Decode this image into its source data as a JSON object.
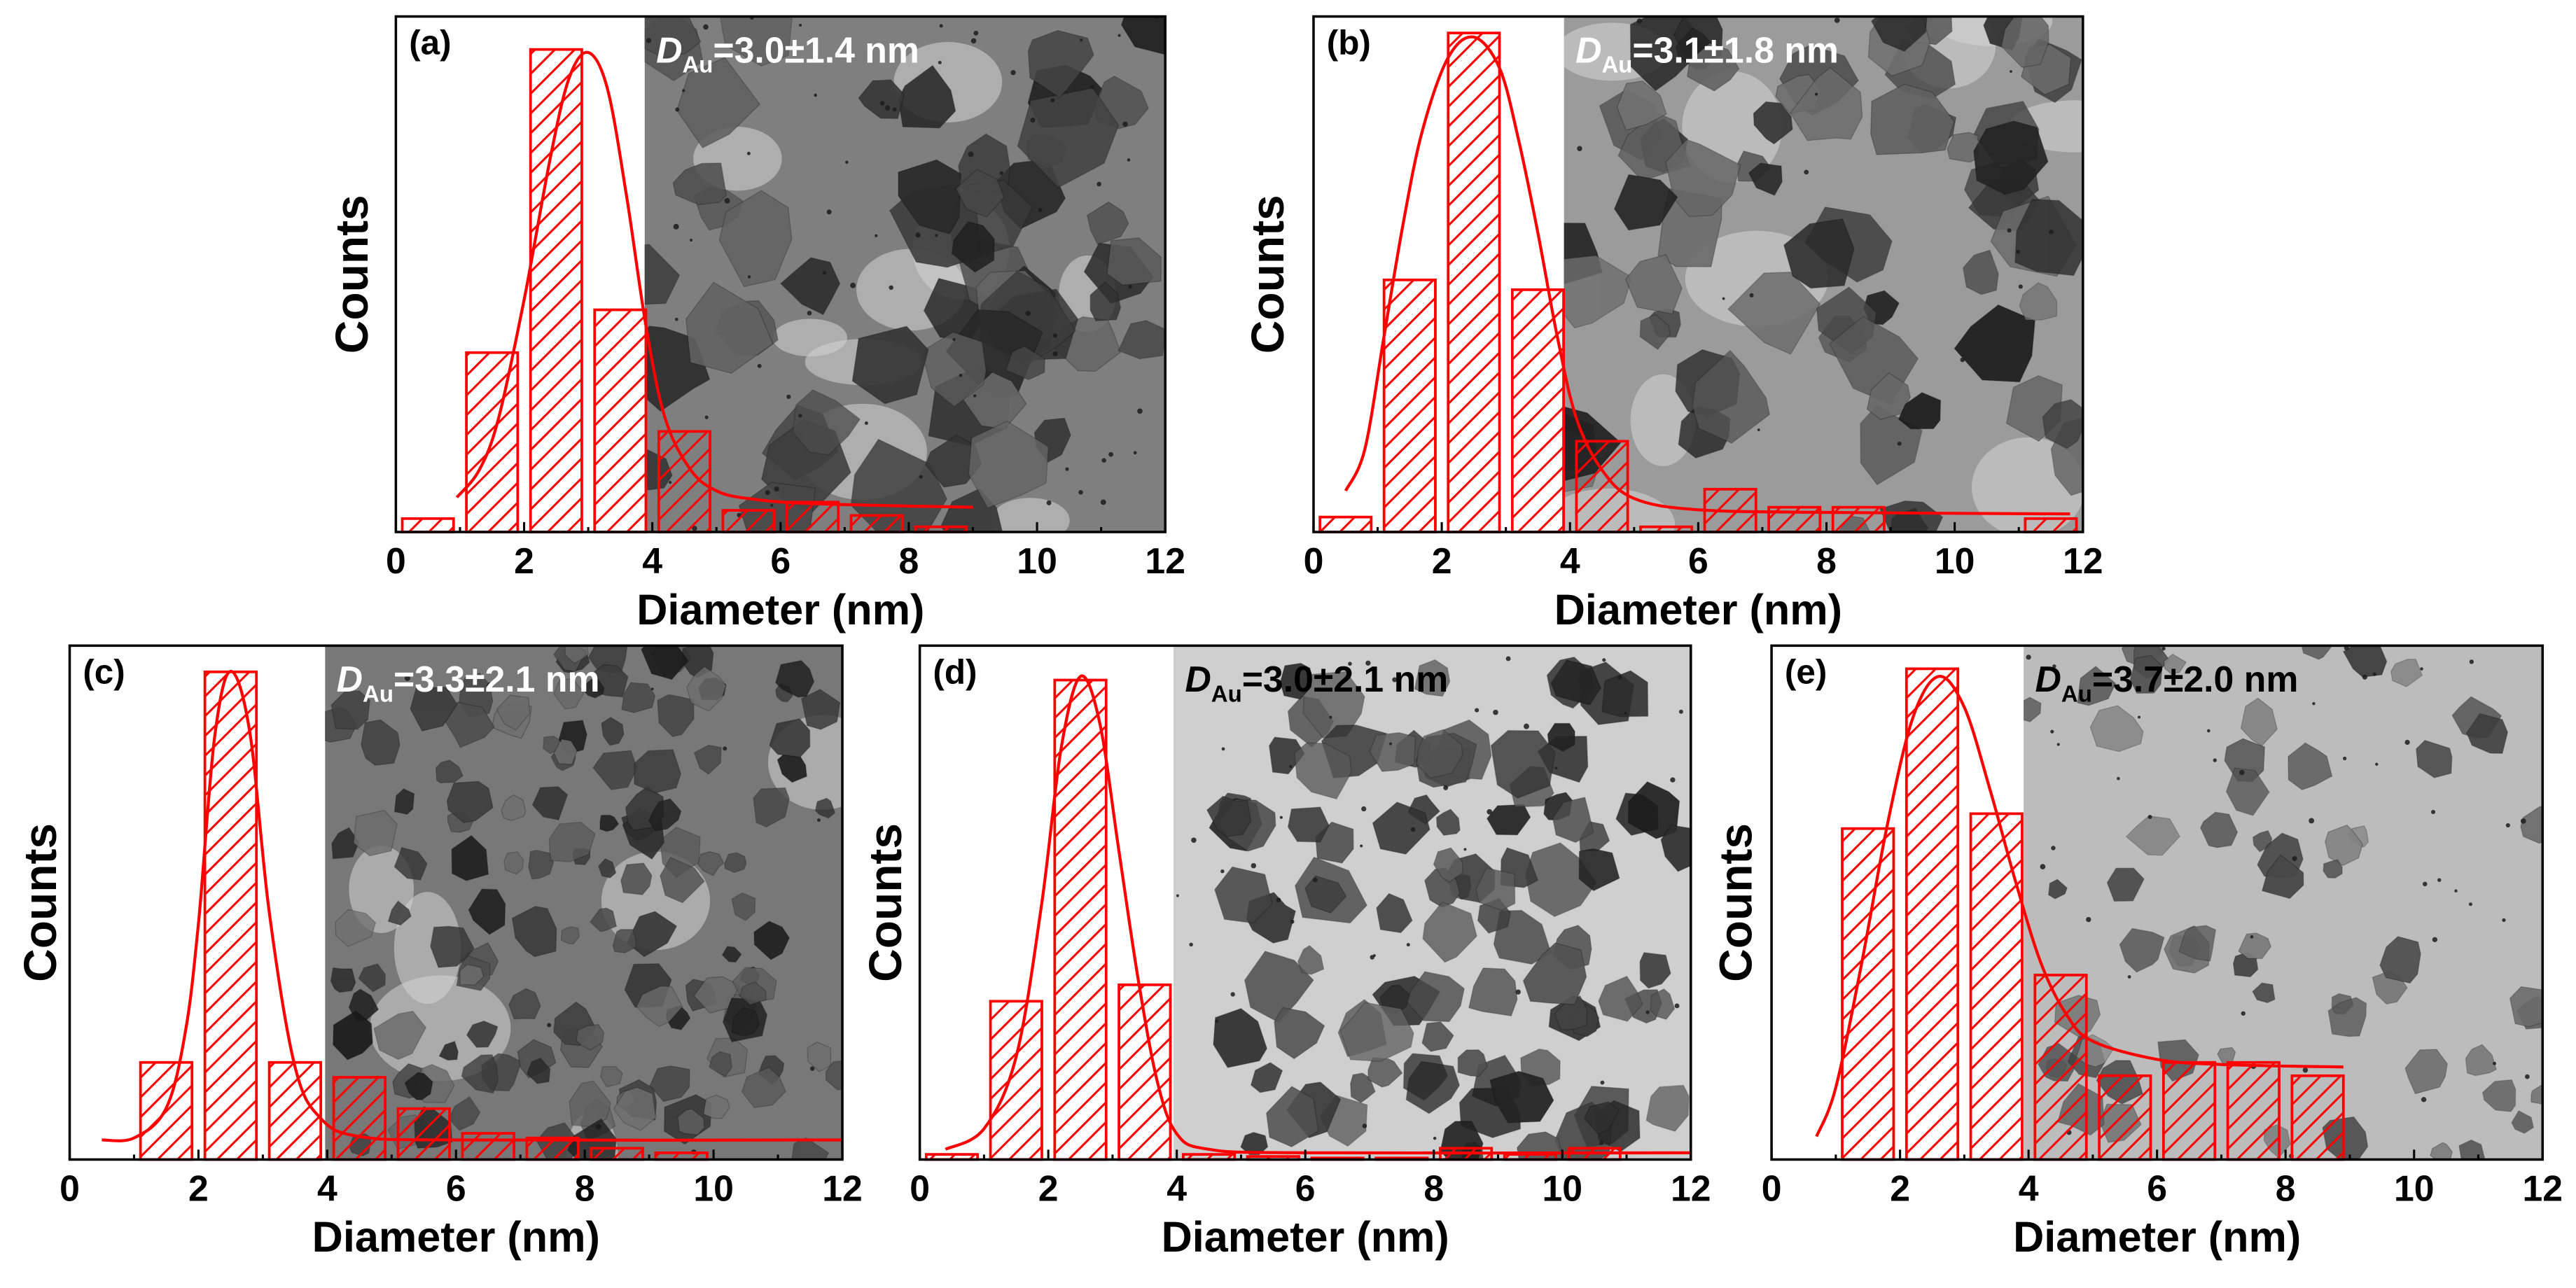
{
  "style": {
    "bar_color": "#ff0000",
    "curve_color": "#ff0000",
    "axis_color": "#000000"
  },
  "chart_data": [
    {
      "type": "bar",
      "panel_label": "(a)",
      "annotation": {
        "symbol": "D",
        "subscript": "Au",
        "value": "=3.0±1.4 nm",
        "color": "#ffffff"
      },
      "xlabel": "Diameter (nm)",
      "ylabel": "Counts",
      "xlim": [
        0,
        12
      ],
      "ylim": [
        0,
        100
      ],
      "x_ticks": [
        0,
        2,
        4,
        6,
        8,
        10,
        12
      ],
      "bin_centers": [
        0.5,
        1.5,
        2.5,
        3.5,
        4.5,
        5.5,
        6.5,
        7.5,
        8.5
      ],
      "values": [
        2.6,
        34.8,
        93.6,
        43.1,
        19.5,
        4.2,
        5.8,
        3.2,
        1.0
      ],
      "fit_curve": {
        "x": [
          0.95,
          1.3,
          1.6,
          2.0,
          2.4,
          2.7,
          3.0,
          3.3,
          3.6,
          3.9,
          4.2,
          4.6,
          5.0,
          5.5,
          6.5,
          9.0
        ],
        "y": [
          6.7,
          12,
          22,
          45,
          72,
          88,
          93,
          86,
          65,
          40,
          22,
          12,
          8,
          6.5,
          5.5,
          4.8
        ]
      }
    },
    {
      "type": "bar",
      "panel_label": "(b)",
      "annotation": {
        "symbol": "D",
        "subscript": "Au",
        "value": "=3.1±1.8 nm",
        "color": "#ffffff"
      },
      "xlabel": "Diameter (nm)",
      "ylabel": "Counts",
      "xlim": [
        0,
        12
      ],
      "ylim": [
        0,
        100
      ],
      "x_ticks": [
        0,
        2,
        4,
        6,
        8,
        10,
        12
      ],
      "bin_centers": [
        0.5,
        1.5,
        2.5,
        3.5,
        4.5,
        5.5,
        6.5,
        7.5,
        8.5,
        11.5
      ],
      "values": [
        2.9,
        48.9,
        96.8,
        47.0,
        17.6,
        1.0,
        8.3,
        4.8,
        4.8,
        2.6
      ],
      "fit_curve": {
        "x": [
          0.5,
          0.8,
          1.1,
          1.4,
          1.7,
          2.1,
          2.5,
          2.9,
          3.2,
          3.5,
          3.8,
          4.1,
          4.5,
          5.0,
          6.0,
          8.0,
          11.8
        ],
        "y": [
          8,
          16,
          38,
          60,
          78,
          92,
          96,
          90,
          76,
          58,
          38,
          22,
          12,
          6.5,
          4.3,
          3.8,
          3.5
        ]
      }
    },
    {
      "type": "bar",
      "panel_label": "(c)",
      "annotation": {
        "symbol": "D",
        "subscript": "Au",
        "value": "=3.3±2.1 nm",
        "color": "#ffffff"
      },
      "xlabel": "Diameter (nm)",
      "ylabel": "Counts",
      "xlim": [
        0,
        12
      ],
      "ylim": [
        0,
        100
      ],
      "x_ticks": [
        0,
        2,
        4,
        6,
        8,
        10,
        12
      ],
      "bin_centers": [
        1.5,
        2.5,
        3.5,
        4.5,
        5.5,
        6.5,
        7.5,
        8.5,
        9.5
      ],
      "values": [
        18.9,
        94.9,
        18.9,
        16.0,
        9.9,
        5.1,
        4.2,
        2.2,
        1.3
      ],
      "fit_curve": {
        "x": [
          0.5,
          1.0,
          1.5,
          1.8,
          2.0,
          2.25,
          2.5,
          2.8,
          3.1,
          3.5,
          3.9,
          4.5,
          6.0,
          12.0
        ],
        "y": [
          3.8,
          4.2,
          10,
          25,
          46,
          82,
          95,
          83,
          48,
          18,
          8,
          4.5,
          3.8,
          3.8
        ]
      }
    },
    {
      "type": "bar",
      "panel_label": "(d)",
      "annotation": {
        "symbol": "D",
        "subscript": "Au",
        "value": "=3.0±2.1 nm",
        "color": "#000000"
      },
      "xlabel": "Diameter (nm)",
      "ylabel": "Counts",
      "xlim": [
        0,
        12
      ],
      "ylim": [
        0,
        100
      ],
      "x_ticks": [
        0,
        2,
        4,
        6,
        8,
        10,
        12
      ],
      "bin_centers": [
        0.5,
        1.5,
        2.5,
        3.5,
        4.5,
        5.5,
        6.5,
        7.5,
        8.5,
        9.5,
        10.5
      ],
      "values": [
        1.0,
        30.8,
        93.3,
        34.0,
        1.0,
        0.6,
        0.3,
        0.3,
        2.2,
        1.0,
        2.2
      ],
      "fit_curve": {
        "x": [
          0.4,
          1.0,
          1.5,
          1.9,
          2.2,
          2.5,
          2.8,
          3.1,
          3.4,
          3.7,
          4.0,
          4.5,
          6.0,
          12.0
        ],
        "y": [
          2,
          6,
          20,
          50,
          80,
          94,
          85,
          60,
          35,
          15,
          5,
          2,
          1.3,
          1.3
        ]
      }
    },
    {
      "type": "bar",
      "panel_label": "(e)",
      "annotation": {
        "symbol": "D",
        "subscript": "Au",
        "value": "=3.7±2.0 nm",
        "color": "#000000"
      },
      "xlabel": "Diameter (nm)",
      "ylabel": "Counts",
      "xlim": [
        0,
        12
      ],
      "ylim": [
        0,
        100
      ],
      "x_ticks": [
        0,
        2,
        4,
        6,
        8,
        10,
        12
      ],
      "bin_centers": [
        1.5,
        2.5,
        3.5,
        4.5,
        5.5,
        6.5,
        7.5,
        8.5
      ],
      "values": [
        64.4,
        95.5,
        67.3,
        35.9,
        16.3,
        18.9,
        18.9,
        16.3
      ],
      "fit_curve": {
        "x": [
          0.7,
          1.0,
          1.4,
          1.8,
          2.2,
          2.6,
          3.0,
          3.4,
          3.8,
          4.2,
          4.6,
          5.0,
          6.0,
          7.0,
          8.9
        ],
        "y": [
          4.5,
          14,
          38,
          65,
          86,
          94,
          88,
          72,
          54,
          38,
          28,
          23,
          19.5,
          18.5,
          18
        ]
      }
    }
  ]
}
